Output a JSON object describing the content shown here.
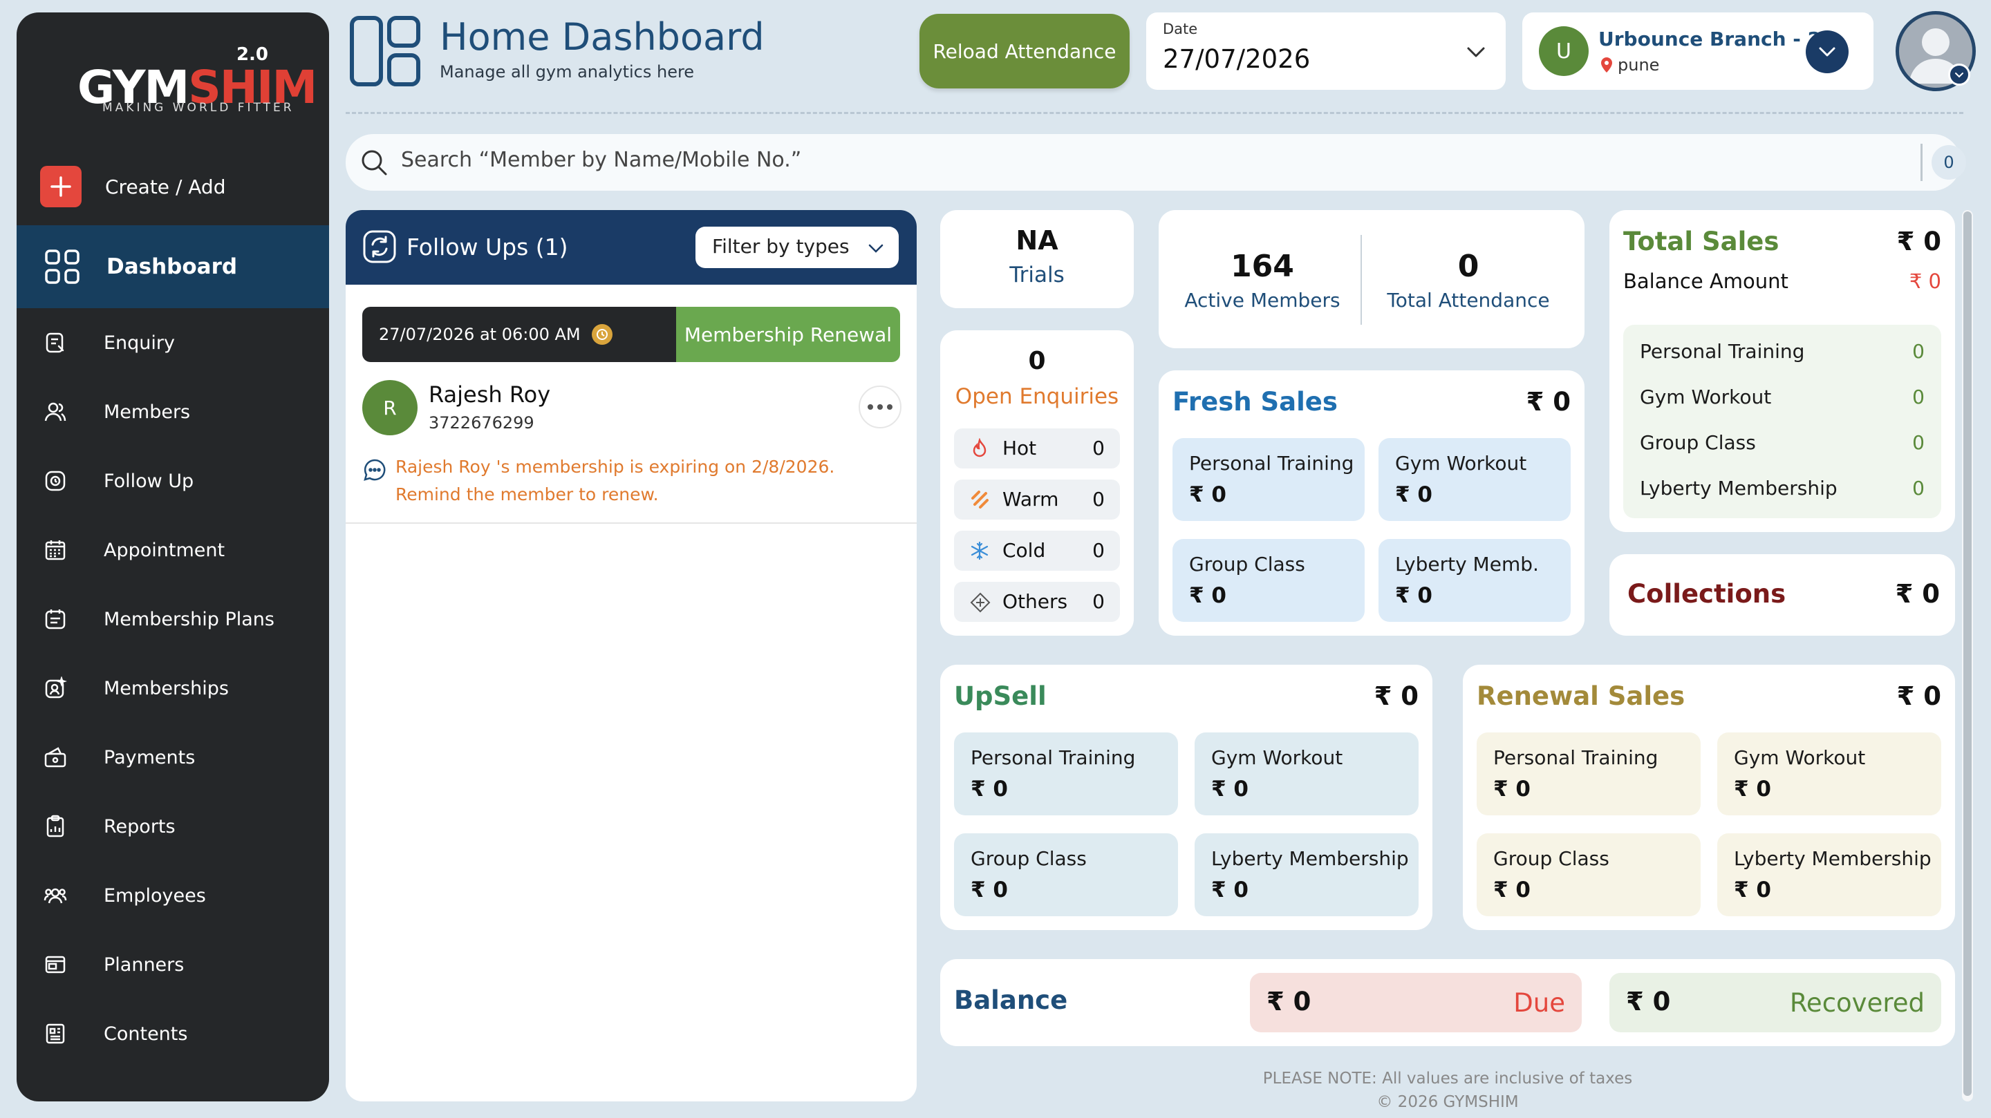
{
  "brand": {
    "version": "2.0",
    "name_white": "GYM",
    "name_red": "SHIM",
    "tagline": "MAKING WORLD FITTER"
  },
  "sidebar": {
    "create_label": "Create / Add",
    "active_label": "Dashboard",
    "items": [
      {
        "label": "Enquiry",
        "icon": "enquiry-icon"
      },
      {
        "label": "Members",
        "icon": "members-icon"
      },
      {
        "label": "Follow Up",
        "icon": "follow-up-icon"
      },
      {
        "label": "Appointment",
        "icon": "calendar-icon"
      },
      {
        "label": "Membership Plans",
        "icon": "plans-icon"
      },
      {
        "label": "Memberships",
        "icon": "membership-icon"
      },
      {
        "label": "Payments",
        "icon": "wallet-icon"
      },
      {
        "label": "Reports",
        "icon": "clipboard-icon"
      },
      {
        "label": "Employees",
        "icon": "employees-icon"
      },
      {
        "label": "Planners",
        "icon": "planner-icon"
      },
      {
        "label": "Contents",
        "icon": "contents-icon"
      }
    ]
  },
  "header": {
    "title": "Home Dashboard",
    "subtitle": "Manage all gym analytics here",
    "reload_label": "Reload Attendance",
    "date_label": "Date",
    "date_value": "27/07/2026",
    "branch_initial": "U",
    "branch_name": "Urbounce Branch - 2",
    "branch_city": "pune"
  },
  "search": {
    "placeholder": "Search “Member by Name/Mobile No.”",
    "count": "0"
  },
  "followups": {
    "title": "Follow Ups (1)",
    "filter_label": "Filter by types",
    "card": {
      "datetime": "27/07/2026 at 06:00 AM",
      "type": "Membership Renewal",
      "initial": "R",
      "name": "Rajesh Roy",
      "phone": "3722676299",
      "message": "Rajesh Roy 's membership is expiring on 2/8/2026. Remind the member to renew."
    }
  },
  "trials": {
    "value": "NA",
    "label": "Trials"
  },
  "stats": {
    "active_value": "164",
    "active_label": "Active Members",
    "attendance_value": "0",
    "attendance_label": "Total Attendance"
  },
  "enquiries": {
    "value": "0",
    "label": "Open Enquiries",
    "rows": [
      {
        "label": "Hot",
        "value": "0"
      },
      {
        "label": "Warm",
        "value": "0"
      },
      {
        "label": "Cold",
        "value": "0"
      },
      {
        "label": "Others",
        "value": "0"
      }
    ]
  },
  "fresh_sales": {
    "title": "Fresh Sales",
    "total": "₹ 0",
    "tiles": [
      {
        "label": "Personal Training",
        "value": "₹ 0"
      },
      {
        "label": "Gym Workout",
        "value": "₹ 0"
      },
      {
        "label": "Group Class",
        "value": "₹ 0"
      },
      {
        "label": "Lyberty Memb.",
        "value": "₹ 0"
      }
    ]
  },
  "total_sales": {
    "title": "Total Sales",
    "total": "₹ 0",
    "balance_label": "Balance Amount",
    "balance_value": "₹ 0",
    "items": [
      {
        "label": "Personal Training",
        "value": "0"
      },
      {
        "label": "Gym Workout",
        "value": "0"
      },
      {
        "label": "Group Class",
        "value": "0"
      },
      {
        "label": "Lyberty Membership",
        "value": "0"
      }
    ]
  },
  "collections": {
    "title": "Collections",
    "value": "₹ 0"
  },
  "upsell": {
    "title": "UpSell",
    "total": "₹ 0",
    "tiles": [
      {
        "label": "Personal Training",
        "value": "₹ 0"
      },
      {
        "label": "Gym Workout",
        "value": "₹ 0"
      },
      {
        "label": "Group Class",
        "value": "₹ 0"
      },
      {
        "label": "Lyberty Membership",
        "value": "₹ 0"
      }
    ]
  },
  "renewal": {
    "title": "Renewal Sales",
    "total": "₹ 0",
    "tiles": [
      {
        "label": "Personal Training",
        "value": "₹ 0"
      },
      {
        "label": "Gym Workout",
        "value": "₹ 0"
      },
      {
        "label": "Group Class",
        "value": "₹ 0"
      },
      {
        "label": "Lyberty Membership",
        "value": "₹ 0"
      }
    ]
  },
  "balance": {
    "title": "Balance",
    "due_value": "₹ 0",
    "due_label": "Due",
    "recovered_value": "₹ 0",
    "recovered_label": "Recovered"
  },
  "footer": {
    "note": "PLEASE NOTE: All values are inclusive of taxes",
    "copyright": "© 2026 GYMSHIM"
  },
  "colors": {
    "navy": "#1a3b66",
    "green": "#6b8e3a",
    "red": "#e4473d",
    "orange": "#e07a2e"
  }
}
